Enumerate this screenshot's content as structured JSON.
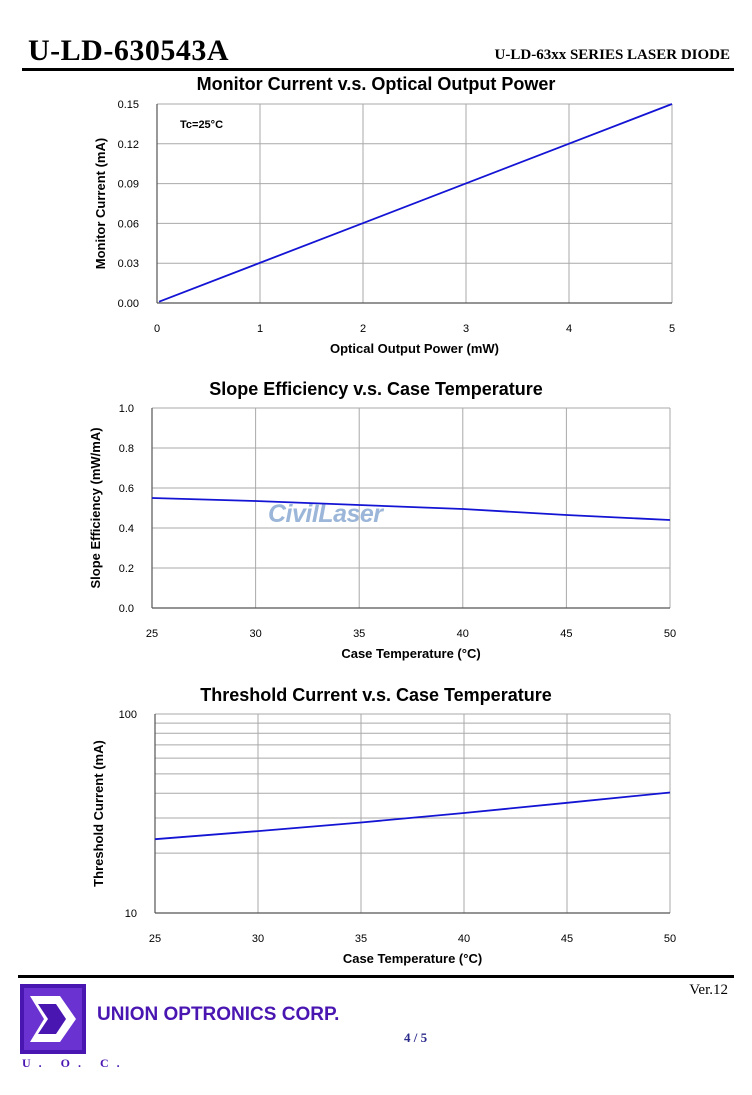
{
  "header": {
    "model": "U-LD-630543A",
    "series": "U-LD-63xx SERIES LASER DIODE"
  },
  "watermark": "CivilLaser",
  "footer": {
    "version": "Ver.12",
    "company": "UNION OPTRONICS CORP.",
    "page": "4 / 5",
    "logo_text": "U. O. C."
  },
  "colors": {
    "line": "#1414d4",
    "grid": "#a9a9a9",
    "brand": "#4a16b2"
  },
  "chart_data": [
    {
      "type": "line",
      "title": "Monitor Current v.s. Optical Output Power",
      "xlabel": "Optical Output Power (mW)",
      "ylabel": "Monitor Current (mA)",
      "annotation": "Tc=25°C",
      "xlim": [
        0,
        5
      ],
      "ylim": [
        0,
        0.15
      ],
      "xticks": [
        0,
        1,
        2,
        3,
        4,
        5
      ],
      "xtick_labels": [
        "0",
        "1",
        "2",
        "3",
        "4",
        "5"
      ],
      "yticks": [
        0,
        0.03,
        0.06,
        0.09,
        0.12,
        0.15
      ],
      "ytick_labels": [
        "0.00",
        "0.03",
        "0.06",
        "0.09",
        "0.12",
        "0.15"
      ],
      "yscale": "linear",
      "grid": true,
      "series": [
        {
          "x": [
            0.02,
            5
          ],
          "y": [
            0.001,
            0.15
          ]
        }
      ]
    },
    {
      "type": "line",
      "title": "Slope Efficiency v.s. Case Temperature",
      "xlabel": "Case Temperature (°C)",
      "ylabel": "Slope Efficiency (mW/mA)",
      "xlim": [
        25,
        50
      ],
      "ylim": [
        0,
        1.0
      ],
      "xticks": [
        25,
        30,
        35,
        40,
        45,
        50
      ],
      "xtick_labels": [
        "25",
        "30",
        "35",
        "40",
        "45",
        "50"
      ],
      "yticks": [
        0,
        0.2,
        0.4,
        0.6,
        0.8,
        1.0
      ],
      "ytick_labels": [
        "0.0",
        "0.2",
        "0.4",
        "0.6",
        "0.8",
        "1.0"
      ],
      "yscale": "linear",
      "grid": true,
      "series": [
        {
          "x": [
            25,
            30,
            35,
            40,
            45,
            50
          ],
          "y": [
            0.55,
            0.535,
            0.515,
            0.495,
            0.465,
            0.44
          ]
        }
      ]
    },
    {
      "type": "line",
      "title": "Threshold Current v.s. Case Temperature",
      "xlabel": "Case Temperature (°C)",
      "ylabel": "Threshold Current (mA)",
      "xlim": [
        25,
        50
      ],
      "ylim": [
        10,
        100
      ],
      "xticks": [
        25,
        30,
        35,
        40,
        45,
        50
      ],
      "xtick_labels": [
        "25",
        "30",
        "35",
        "40",
        "45",
        "50"
      ],
      "yticks": [
        10,
        100
      ],
      "ytick_labels": [
        "10",
        "100"
      ],
      "yscale": "log",
      "grid": true,
      "series": [
        {
          "x": [
            25,
            30,
            35,
            40,
            45,
            50
          ],
          "y": [
            23.5,
            25.8,
            28.5,
            31.8,
            35.8,
            40.3
          ]
        }
      ]
    }
  ]
}
